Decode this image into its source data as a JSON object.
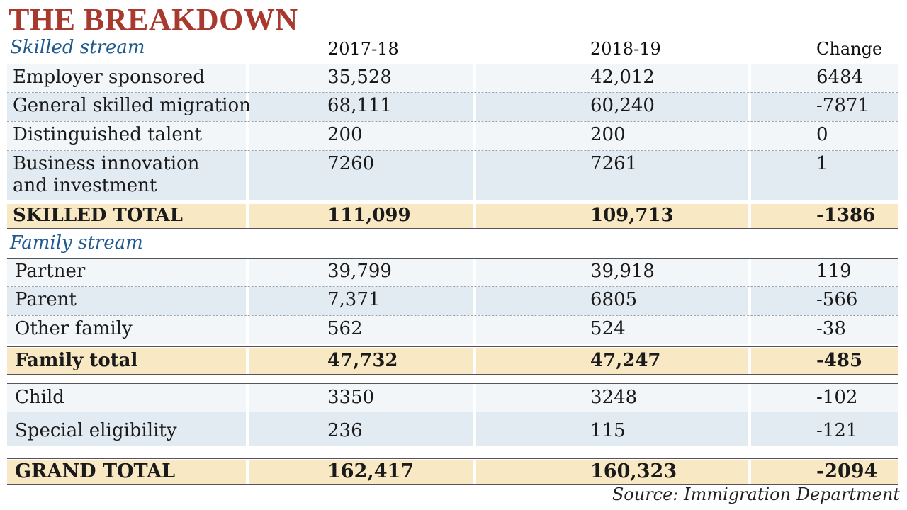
{
  "title": "THE BREAKDOWN",
  "chart_data": {
    "type": "table",
    "columns": [
      "2017-18",
      "2018-19",
      "Change"
    ],
    "sections": [
      {
        "label": "Skilled stream",
        "rows": [
          {
            "name": "Employer sponsored",
            "v2017": "35,528",
            "v2018": "42,012",
            "change": "6484"
          },
          {
            "name": "General skilled migration",
            "v2017": "68,111",
            "v2018": "60,240",
            "change": "-7871"
          },
          {
            "name": "Distinguished talent",
            "v2017": "200",
            "v2018": "200",
            "change": "0"
          },
          {
            "name": "Business innovation and investment",
            "name_line1": "Business innovation",
            "name_line2": "and investment",
            "v2017": "7260",
            "v2018": "7261",
            "change": "1"
          }
        ],
        "total": {
          "name": "SKILLED TOTAL",
          "v2017": "111,099",
          "v2018": "109,713",
          "change": "-1386"
        }
      },
      {
        "label": "Family stream",
        "rows": [
          {
            "name": "Partner",
            "v2017": "39,799",
            "v2018": "39,918",
            "change": "119"
          },
          {
            "name": "Parent",
            "v2017": "7,371",
            "v2018": "6805",
            "change": "-566"
          },
          {
            "name": "Other family",
            "v2017": "562",
            "v2018": "524",
            "change": "-38"
          }
        ],
        "total": {
          "name": "Family total",
          "v2017": "47,732",
          "v2018": "47,247",
          "change": "-485"
        }
      },
      {
        "label": "",
        "rows": [
          {
            "name": "Child",
            "v2017": "3350",
            "v2018": "3248",
            "change": "-102"
          },
          {
            "name": "Special eligibility",
            "v2017": "236",
            "v2018": "115",
            "change": "-121"
          }
        ]
      }
    ],
    "grand_total": {
      "name": "GRAND TOTAL",
      "v2017": "162,417",
      "v2018": "160,323",
      "change": "-2094"
    }
  },
  "source": "Source: Immigration Department",
  "colors": {
    "title": "#a8392e",
    "section_label": "#1f5a8c",
    "row_light": "#f3f6f9",
    "row_dark": "#e3ebf2",
    "total_row": "#f9e8c4"
  }
}
